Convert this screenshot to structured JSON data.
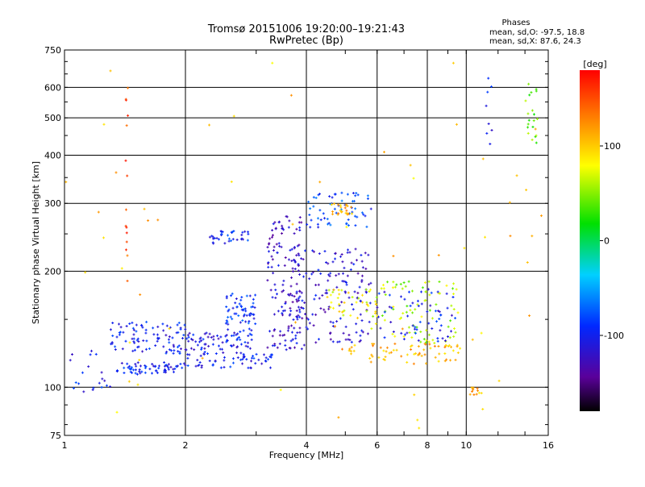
{
  "chart_data": {
    "type": "scatter",
    "title": "Tromsø 20151006 19:20:00–19:21:43",
    "subtitle": "RwPretec (Bp)",
    "xlabel": "Frequency [MHz]",
    "ylabel": "Stationary phase Virtual Height [km]",
    "x_scale": "log",
    "y_scale": "log",
    "xlim": [
      1,
      16
    ],
    "ylim": [
      75,
      750
    ],
    "x_ticks": [
      1,
      2,
      4,
      6,
      8,
      10,
      16
    ],
    "x_tick_labels": [
      "1",
      "2",
      "4",
      "6",
      "8",
      "10",
      "16"
    ],
    "y_ticks": [
      75,
      100,
      200,
      300,
      400,
      500,
      600,
      750
    ],
    "y_tick_labels": [
      "75",
      "100",
      "200",
      "300",
      "400",
      "500",
      "600",
      "750"
    ],
    "grid": true,
    "stats": {
      "heading": "Phases",
      "line_o": "mean, sd,O: -97.5, 18.8",
      "line_x": "mean, sd,X:  87.6, 24.3"
    },
    "colorbar": {
      "label": "[deg]",
      "range": [
        -180,
        180
      ],
      "ticks": [
        100,
        0,
        -100
      ],
      "tick_labels": [
        "100",
        "0",
        "-100"
      ]
    },
    "clusters": [
      {
        "f0": 1.35,
        "f1": 1.9,
        "h0": 108,
        "h1": 116,
        "phase": -100,
        "n": 60
      },
      {
        "f0": 1.9,
        "f1": 3.3,
        "h0": 112,
        "h1": 124,
        "phase": -100,
        "n": 70
      },
      {
        "f0": 1.3,
        "f1": 2.0,
        "h0": 122,
        "h1": 148,
        "phase": -100,
        "n": 90
      },
      {
        "f0": 2.0,
        "f1": 3.0,
        "h0": 125,
        "h1": 140,
        "phase": -105,
        "n": 70
      },
      {
        "f0": 2.5,
        "f1": 3.0,
        "h0": 140,
        "h1": 175,
        "phase": -90,
        "n": 60
      },
      {
        "f0": 2.3,
        "f1": 2.9,
        "h0": 235,
        "h1": 255,
        "phase": -95,
        "n": 35
      },
      {
        "f0": 3.2,
        "f1": 4.0,
        "h0": 125,
        "h1": 280,
        "phase": -120,
        "n": 140
      },
      {
        "f0": 3.6,
        "f1": 5.8,
        "h0": 130,
        "h1": 230,
        "phase": -115,
        "n": 160
      },
      {
        "f0": 4.0,
        "f1": 5.8,
        "h0": 260,
        "h1": 320,
        "phase": -85,
        "n": 60
      },
      {
        "f0": 4.6,
        "f1": 5.2,
        "h0": 280,
        "h1": 300,
        "phase": 110,
        "n": 25
      },
      {
        "f0": 4.5,
        "f1": 6.0,
        "h0": 150,
        "h1": 180,
        "phase": 80,
        "n": 40
      },
      {
        "f0": 4.8,
        "f1": 9.8,
        "h0": 115,
        "h1": 130,
        "phase": 110,
        "n": 70
      },
      {
        "f0": 5.8,
        "f1": 9.5,
        "h0": 130,
        "h1": 190,
        "phase": 60,
        "n": 80
      },
      {
        "f0": 6.0,
        "f1": 9.5,
        "h0": 130,
        "h1": 180,
        "phase": -100,
        "n": 60
      },
      {
        "f0": 1.03,
        "f1": 1.3,
        "h0": 95,
        "h1": 125,
        "phase": -100,
        "n": 20
      },
      {
        "f0": 10.2,
        "f1": 11.0,
        "h0": 95,
        "h1": 100,
        "phase": 110,
        "n": 12
      },
      {
        "f0": 14.0,
        "f1": 15.6,
        "h0": 430,
        "h1": 620,
        "phase": 40,
        "n": 20
      },
      {
        "f0": 11.2,
        "f1": 11.6,
        "h0": 360,
        "h1": 690,
        "phase": -100,
        "n": 8
      },
      {
        "f0": 1.42,
        "f1": 1.44,
        "h0": 170,
        "h1": 600,
        "phase": 150,
        "n": 15
      },
      {
        "f0": 1.0,
        "f1": 16.0,
        "h0": 78,
        "h1": 700,
        "phase": 100,
        "n": 60
      }
    ]
  }
}
